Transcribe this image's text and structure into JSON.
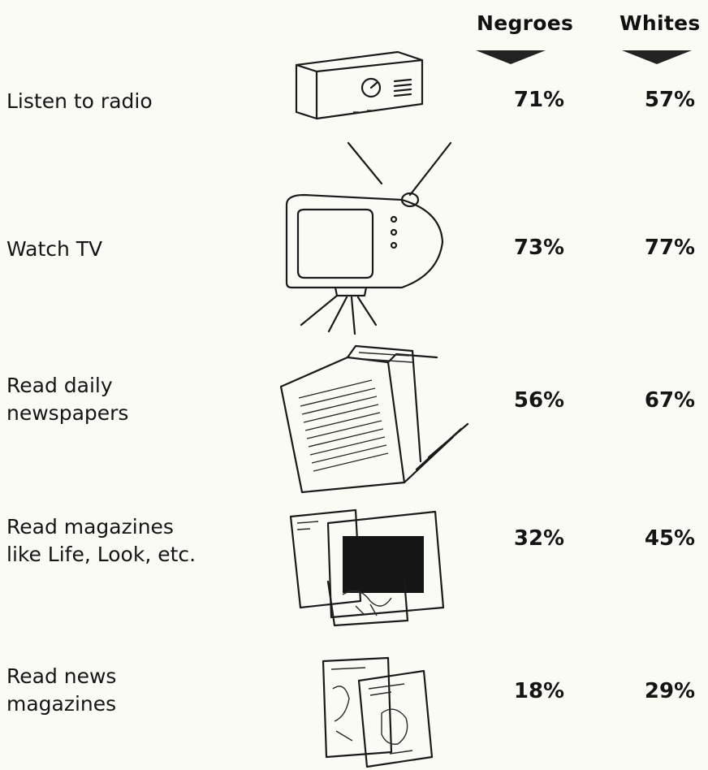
{
  "chart_data": {
    "type": "table",
    "columns": [
      "Negroes",
      "Whites"
    ],
    "rows": [
      {
        "label": "Listen to radio",
        "icon": "radio-icon",
        "negroes": "71%",
        "whites": "57%"
      },
      {
        "label": "Watch TV",
        "icon": "television-icon",
        "negroes": "73%",
        "whites": "77%"
      },
      {
        "label_lines": [
          "Read daily",
          "newspapers"
        ],
        "icon": "newspaper-icon",
        "negroes": "56%",
        "whites": "67%"
      },
      {
        "label_lines": [
          "Read magazines",
          "like Life, Look, etc."
        ],
        "icon": "magazines-icon",
        "negroes": "32%",
        "whites": "45%"
      },
      {
        "label_lines": [
          "Read news",
          "magazines"
        ],
        "icon": "news-magazines-icon",
        "negroes": "18%",
        "whites": "29%"
      }
    ],
    "values": {
      "Negroes": [
        71,
        73,
        56,
        32,
        18
      ],
      "Whites": [
        57,
        77,
        67,
        45,
        29
      ]
    }
  }
}
